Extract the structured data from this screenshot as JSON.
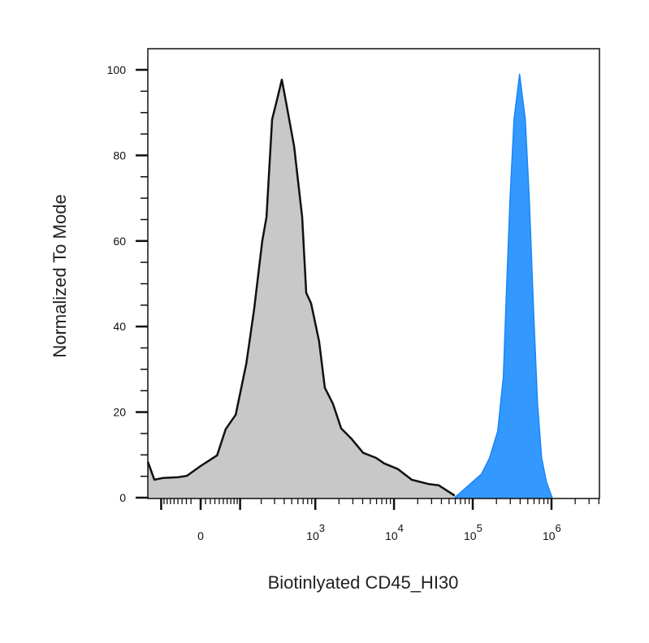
{
  "chart_data": {
    "type": "area",
    "title": "",
    "xlabel": "Biotinlyated CD45_HI30",
    "ylabel": "Normalized To Mode",
    "x_scale": "biexponential",
    "xlim": [
      -158,
      4000000
    ],
    "ylim": [
      0,
      100
    ],
    "grid": false,
    "legend": "none",
    "x_ticks": [
      {
        "value": 0,
        "label": "0",
        "exp": ""
      },
      {
        "value": 1000,
        "label": "10",
        "exp": "3"
      },
      {
        "value": 10000,
        "label": "10",
        "exp": "4"
      },
      {
        "value": 100000,
        "label": "10",
        "exp": "5"
      },
      {
        "value": 1000000,
        "label": "10",
        "exp": "6"
      }
    ],
    "y_ticks": [
      {
        "value": 0,
        "label": "0"
      },
      {
        "value": 20,
        "label": "20"
      },
      {
        "value": 40,
        "label": "40"
      },
      {
        "value": 60,
        "label": "60"
      },
      {
        "value": 80,
        "label": "80"
      },
      {
        "value": 100,
        "label": "100"
      }
    ],
    "series": [
      {
        "color": "#c8c8c8",
        "stroke": "#111111",
        "x": [
          -158,
          -126,
          -95,
          -48,
          -29,
          0,
          35,
          56,
          85,
          124,
          160,
          206,
          235,
          279,
          315,
          373,
          431,
          536,
          680,
          766,
          884,
          1120,
          1323,
          1680,
          2130,
          2900,
          4050,
          5920,
          7500,
          11200,
          16800,
          27200,
          36900,
          59000
        ],
        "y": [
          8.4,
          4.2,
          4.6,
          4.8,
          5.1,
          7.4,
          9.9,
          16.0,
          19.4,
          31.4,
          44.1,
          59.9,
          65.6,
          88.4,
          92.2,
          97.7,
          91.6,
          82.1,
          65.6,
          47.9,
          45.4,
          36.5,
          25.7,
          21.9,
          16.2,
          13.7,
          10.5,
          9.3,
          8.0,
          6.7,
          4.2,
          3.2,
          2.9,
          0.5
        ]
      },
      {
        "color": "#3399ff",
        "stroke": "#1a86f5",
        "x": [
          59000,
          129000,
          164000,
          208000,
          245000,
          263000,
          297000,
          334000,
          394000,
          465000,
          524000,
          591000,
          665000,
          749000,
          864000,
          1020000
        ],
        "y": [
          0,
          5.5,
          9.3,
          15.6,
          28.3,
          44.1,
          69.4,
          88.4,
          99,
          88.4,
          69.4,
          44.1,
          21.9,
          9.3,
          3.6,
          0
        ]
      }
    ]
  }
}
